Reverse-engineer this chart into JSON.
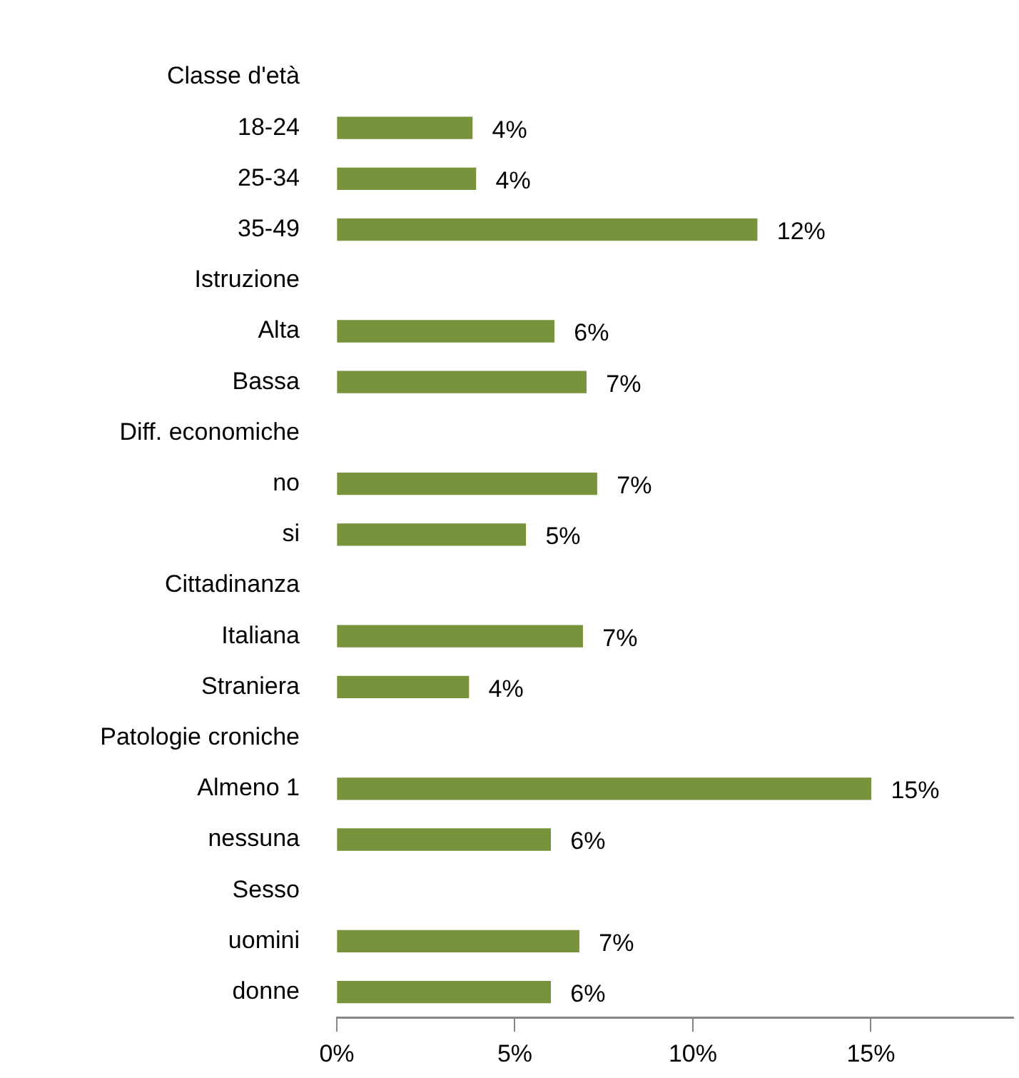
{
  "chart_data": {
    "type": "bar",
    "orientation": "horizontal",
    "categories": [
      "Classe d'età",
      "18-24",
      "25-34",
      "35-49",
      "Istruzione",
      "Alta",
      "Bassa",
      "Diff. economiche",
      "no",
      "si",
      "Cittadinanza",
      "Italiana",
      "Straniera",
      "Patologie croniche",
      "Almeno 1",
      "nessuna",
      "Sesso",
      "uomini",
      "donne"
    ],
    "values": [
      null,
      3.8,
      3.9,
      11.8,
      null,
      6.1,
      7.0,
      null,
      7.3,
      5.3,
      null,
      6.9,
      3.7,
      null,
      15.0,
      6.0,
      null,
      6.8,
      6.0
    ],
    "value_labels": [
      null,
      "4%",
      "4%",
      "12%",
      null,
      "6%",
      "7%",
      null,
      "7%",
      "5%",
      null,
      "7%",
      "4%",
      null,
      "15%",
      "6%",
      null,
      "7%",
      "6%"
    ],
    "color": "#77933c",
    "xlim": [
      0,
      19
    ],
    "xticks": [
      {
        "value": 0,
        "label": "0%"
      },
      {
        "value": 5,
        "label": "5%"
      },
      {
        "value": 10,
        "label": "10%"
      },
      {
        "value": 15,
        "label": "15%"
      }
    ],
    "grid": false
  }
}
